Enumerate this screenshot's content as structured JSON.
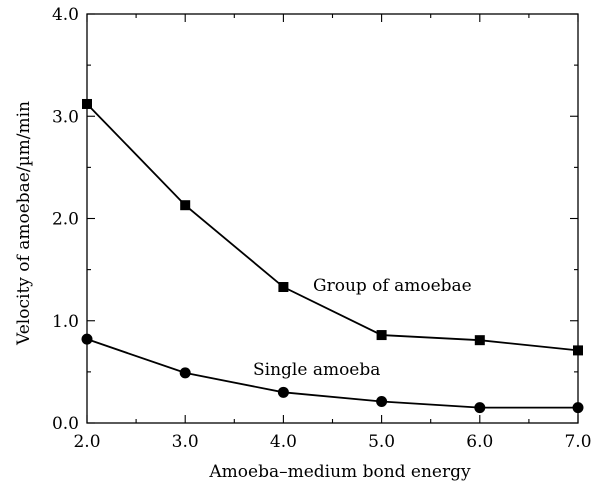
{
  "chart_data": {
    "type": "line",
    "title": "",
    "xlabel": "Amoeba–medium bond energy",
    "ylabel": "Velocity of amoebae/µm/min",
    "xlim": [
      2.0,
      7.0
    ],
    "ylim": [
      0.0,
      4.0
    ],
    "x_ticks": [
      "2.0",
      "3.0",
      "4.0",
      "5.0",
      "6.0",
      "7.0"
    ],
    "y_ticks": [
      "0.0",
      "1.0",
      "2.0",
      "3.0",
      "4.0"
    ],
    "grid": false,
    "x": [
      2.0,
      3.0,
      4.0,
      5.0,
      6.0,
      7.0
    ],
    "series": [
      {
        "name": "Group of amoebae",
        "marker": "square",
        "color": "#000000",
        "values": [
          3.12,
          2.13,
          1.33,
          0.86,
          0.81,
          0.71
        ]
      },
      {
        "name": "Single amoeba",
        "marker": "circle",
        "color": "#000000",
        "values": [
          0.82,
          0.49,
          0.3,
          0.21,
          0.15,
          0.15
        ]
      }
    ]
  }
}
